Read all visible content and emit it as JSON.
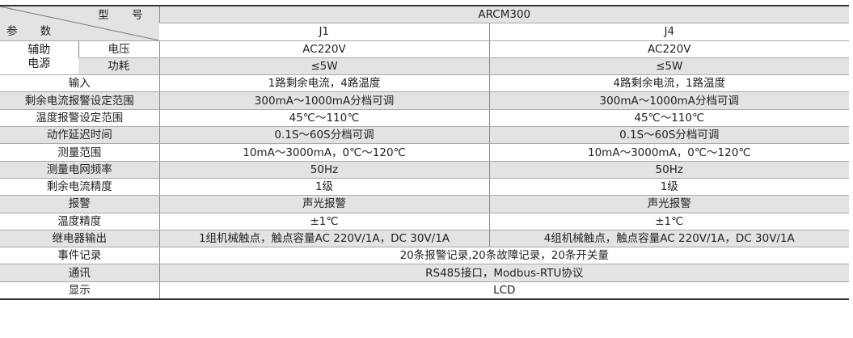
{
  "header": {
    "model_label": "型 号",
    "param_label": "参 数",
    "model": "ARCM300",
    "variants": [
      "J1",
      "J4"
    ]
  },
  "aux_power": {
    "label": "辅助\n电源",
    "label_line1": "辅助",
    "label_line2": "电源",
    "rows": [
      {
        "name": "电压",
        "J1": "AC220V",
        "J4": "AC220V"
      },
      {
        "name": "功耗",
        "J1": "≤5W",
        "J4": "≤5W"
      }
    ]
  },
  "rows": [
    {
      "name": "输入",
      "J1": "1路剩余电流，4路温度",
      "J4": "4路剩余电流，1路温度"
    },
    {
      "name": "剩余电流报警设定范围",
      "J1": "300mA～1000mA分档可调",
      "J4": "300mA～1000mA分档可调"
    },
    {
      "name": "温度报警设定范围",
      "J1": "45℃～110℃",
      "J4": "45℃～110℃"
    },
    {
      "name": "动作延迟时间",
      "J1": "0.1S～60S分档可调",
      "J4": "0.1S～60S分档可调"
    },
    {
      "name": "测量范围",
      "J1": "10mA～3000mA，0℃～120℃",
      "J4": "10mA～3000mA，0℃～120℃"
    },
    {
      "name": "测量电网频率",
      "J1": "50Hz",
      "J4": "50Hz"
    },
    {
      "name": "剩余电流精度",
      "J1": "1级",
      "J4": "1级"
    },
    {
      "name": "报警",
      "J1": "声光报警",
      "J4": "声光报警"
    },
    {
      "name": "温度精度",
      "J1": "±1℃",
      "J4": "±1℃"
    },
    {
      "name": "继电器输出",
      "J1": "1组机械触点，触点容量AC 220V/1A，DC 30V/1A",
      "J4": "4组机械触点，触点容量AC 220V/1A，DC 30V/1A"
    }
  ],
  "shared_rows": [
    {
      "name": "事件记录",
      "value": "20条报警记录,20条故障记录，20条开关量"
    },
    {
      "name": "通讯",
      "value": "RS485接口，Modbus-RTU协议"
    },
    {
      "name": "显示",
      "value": "LCD"
    }
  ]
}
